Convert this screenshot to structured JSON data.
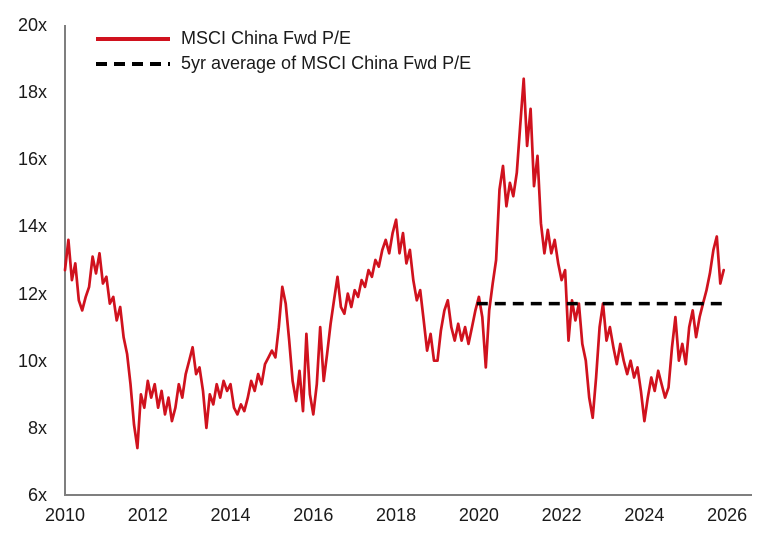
{
  "chart_data": {
    "type": "line",
    "title": "",
    "xlabel": "",
    "ylabel": "",
    "grid": false,
    "legend_position": "top-left",
    "axis_color": "#7f7f7f",
    "text_color": "#1a1a1a",
    "x_range": [
      2010,
      2026.6
    ],
    "y_range": [
      6,
      20
    ],
    "y_tick_labels": [
      "20x",
      "18x",
      "16x",
      "14x",
      "12x",
      "10x",
      "8x",
      "6x"
    ],
    "y_tick_values": [
      20,
      18,
      16,
      14,
      12,
      10,
      8,
      6
    ],
    "x_tick_labels": [
      "2010",
      "2012",
      "2014",
      "2016",
      "2018",
      "2020",
      "2022",
      "2024",
      "2026"
    ],
    "x_tick_values": [
      2010,
      2012,
      2014,
      2016,
      2018,
      2020,
      2022,
      2024,
      2026
    ],
    "series": [
      {
        "name": "MSCI China Fwd P/E",
        "style": "solid",
        "color": "#d0121e",
        "start_year": 2010,
        "interval_months": 1,
        "values": [
          12.7,
          13.6,
          12.4,
          12.9,
          11.8,
          11.5,
          11.9,
          12.2,
          13.1,
          12.6,
          13.2,
          12.3,
          12.5,
          11.7,
          11.9,
          11.2,
          11.6,
          10.7,
          10.2,
          9.3,
          8.1,
          7.4,
          9.0,
          8.6,
          9.4,
          8.9,
          9.3,
          8.6,
          9.1,
          8.4,
          8.9,
          8.2,
          8.6,
          9.3,
          8.9,
          9.6,
          10.0,
          10.4,
          9.6,
          9.8,
          9.1,
          8.0,
          9.0,
          8.7,
          9.3,
          8.9,
          9.4,
          9.1,
          9.3,
          8.6,
          8.4,
          8.7,
          8.5,
          8.9,
          9.4,
          9.1,
          9.6,
          9.3,
          9.9,
          10.1,
          10.3,
          10.1,
          11.0,
          12.2,
          11.7,
          10.6,
          9.4,
          8.8,
          9.7,
          8.5,
          10.8,
          9.0,
          8.4,
          9.3,
          11.0,
          9.4,
          10.2,
          11.1,
          11.8,
          12.5,
          11.6,
          11.4,
          12.0,
          11.6,
          12.1,
          11.9,
          12.4,
          12.2,
          12.7,
          12.5,
          13.0,
          12.8,
          13.3,
          13.6,
          13.2,
          13.8,
          14.2,
          13.2,
          13.8,
          12.9,
          13.3,
          12.4,
          11.8,
          12.1,
          11.2,
          10.3,
          10.8,
          10.0,
          10.0,
          10.9,
          11.5,
          11.8,
          11.0,
          10.6,
          11.1,
          10.6,
          11.0,
          10.5,
          11.0,
          11.5,
          11.9,
          11.3,
          9.8,
          11.5,
          12.3,
          13.0,
          15.1,
          15.8,
          14.6,
          15.3,
          14.9,
          15.6,
          17.0,
          18.4,
          16.4,
          17.5,
          15.2,
          16.1,
          14.1,
          13.2,
          13.9,
          13.2,
          13.6,
          12.9,
          12.4,
          12.7,
          10.6,
          11.8,
          11.2,
          11.7,
          10.5,
          10.0,
          8.9,
          8.3,
          9.5,
          11.0,
          11.7,
          10.6,
          11.0,
          10.4,
          9.9,
          10.5,
          10.0,
          9.6,
          10.0,
          9.5,
          9.8,
          9.1,
          8.2,
          8.9,
          9.5,
          9.1,
          9.7,
          9.3,
          8.9,
          9.2,
          10.4,
          11.3,
          10.0,
          10.5,
          9.9,
          11.0,
          11.5,
          10.7,
          11.3,
          11.7,
          12.1,
          12.6,
          13.3,
          13.7,
          12.3,
          12.7
        ]
      },
      {
        "name": "5yr average of MSCI China Fwd P/E",
        "style": "dashed",
        "color": "#000000",
        "value": 11.7,
        "x_start": 2019.95,
        "x_end": 2025.95
      }
    ]
  }
}
